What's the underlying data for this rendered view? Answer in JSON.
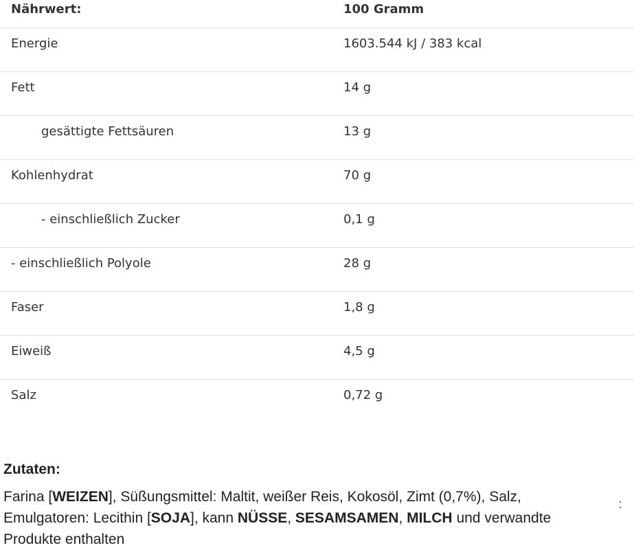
{
  "table": {
    "header": [
      "Nährwert:",
      "100 Gramm"
    ],
    "rows": [
      {
        "label": "Energie",
        "value": "1603.544 kJ / 383 kcal",
        "indent": false
      },
      {
        "label": "Fett",
        "value": "14 g",
        "indent": false
      },
      {
        "label": "gesättigte Fettsäuren",
        "value": "13 g",
        "indent": true
      },
      {
        "label": "Kohlenhydrat",
        "value": "70 g",
        "indent": false
      },
      {
        "label": "- einschließlich Zucker",
        "value": "0,1 g",
        "indent": true
      },
      {
        "label": "- einschließlich Polyole",
        "value": "28 g",
        "indent": false
      },
      {
        "label": "Faser",
        "value": "1,8 g",
        "indent": false
      },
      {
        "label": "Eiweiß",
        "value": "4,5 g",
        "indent": false
      },
      {
        "label": "Salz",
        "value": "0,72 g",
        "indent": false
      }
    ]
  },
  "ingredients": {
    "title": "Zutaten:",
    "segments": [
      {
        "text": "Farina [",
        "bold": false
      },
      {
        "text": "WEIZEN",
        "bold": true
      },
      {
        "text": "], Süßungsmittel: Maltit, weißer Reis, Kokosöl, Zimt (0,7%), Salz, Emulgatoren: Lecithin [",
        "bold": false
      },
      {
        "text": "SOJA",
        "bold": true
      },
      {
        "text": "], kann ",
        "bold": false
      },
      {
        "text": "NÜSSE",
        "bold": true
      },
      {
        "text": ", ",
        "bold": false
      },
      {
        "text": "SESAMSAMEN",
        "bold": true
      },
      {
        "text": ", ",
        "bold": false
      },
      {
        "text": "MILCH",
        "bold": true
      },
      {
        "text": " und verwandte Produkte enthalten",
        "bold": false
      }
    ]
  }
}
